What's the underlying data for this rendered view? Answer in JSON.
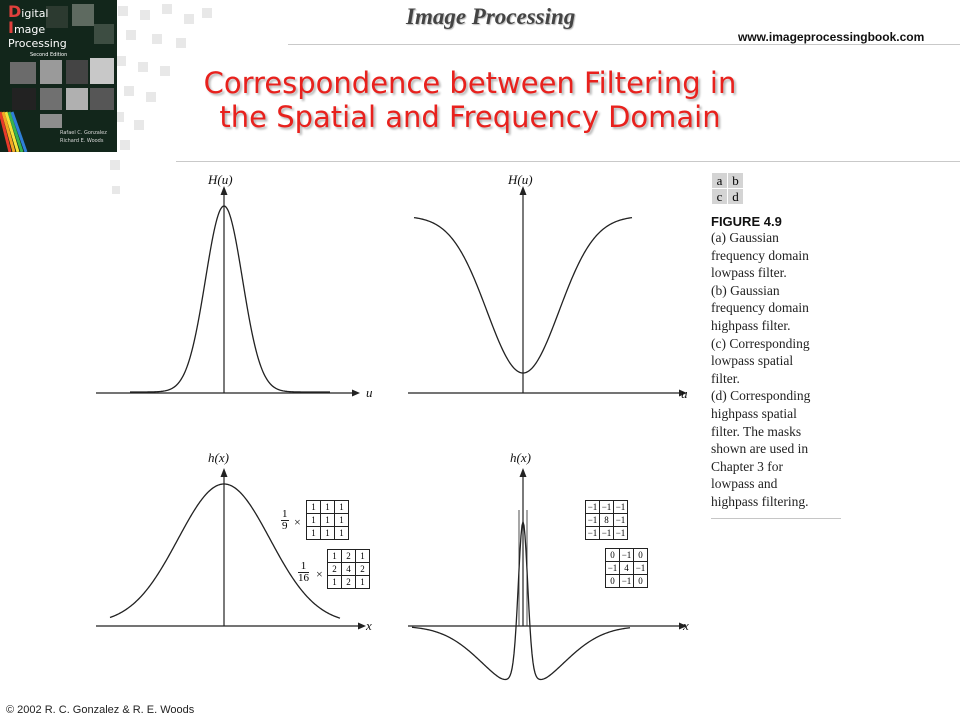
{
  "cover": {
    "title_lines": [
      "igital",
      "mage",
      "Processing"
    ],
    "title_initials": [
      "D",
      "I"
    ],
    "edition": "Second Edition",
    "authors": [
      "Rafael C. Gonzalez",
      "Richard E. Woods"
    ]
  },
  "header": {
    "title": "Image Processing",
    "website": "www.imageprocessingbook.com"
  },
  "slide_title": {
    "line1": "Correspondence between Filtering in",
    "line2": "the Spatial and Frequency Domain"
  },
  "panels": {
    "a": {
      "ylabel": "H(u)",
      "xlabel": "u"
    },
    "b": {
      "ylabel": "H(u)",
      "xlabel": "u"
    },
    "c": {
      "ylabel": "h(x)",
      "xlabel": "x"
    },
    "d": {
      "ylabel": "h(x)",
      "xlabel": "x"
    }
  },
  "masks": {
    "lowpass_box": {
      "factor_num": "1",
      "factor_den": "9",
      "times": "×",
      "rows": [
        [
          "1",
          "1",
          "1"
        ],
        [
          "1",
          "1",
          "1"
        ],
        [
          "1",
          "1",
          "1"
        ]
      ]
    },
    "lowpass_weighted": {
      "factor_num": "1",
      "factor_den": "16",
      "times": "×",
      "rows": [
        [
          "1",
          "2",
          "1"
        ],
        [
          "2",
          "4",
          "2"
        ],
        [
          "1",
          "2",
          "1"
        ]
      ]
    },
    "highpass_8": {
      "rows": [
        [
          "−1",
          "−1",
          "−1"
        ],
        [
          "−1",
          "8",
          "−1"
        ],
        [
          "−1",
          "−1",
          "−1"
        ]
      ]
    },
    "highpass_4": {
      "rows": [
        [
          "0",
          "−1",
          "0"
        ],
        [
          "−1",
          "4",
          "−1"
        ],
        [
          "0",
          "−1",
          "0"
        ]
      ]
    }
  },
  "caption": {
    "grid": [
      [
        "a",
        "b"
      ],
      [
        "c",
        "d"
      ]
    ],
    "figure_label": "FIGURE 4.9",
    "lines": [
      "(a) Gaussian",
      "frequency domain",
      "lowpass filter.",
      "(b) Gaussian",
      "frequency domain",
      "highpass filter.",
      "(c) Corresponding",
      "lowpass spatial",
      "filter.",
      "(d) Corresponding",
      "highpass spatial",
      "filter. The masks",
      "shown are used in",
      "Chapter 3 for",
      "lowpass and",
      "highpass filtering."
    ]
  },
  "footer": {
    "copyright": "© 2002 R. C. Gonzalez & R. E. Woods"
  }
}
